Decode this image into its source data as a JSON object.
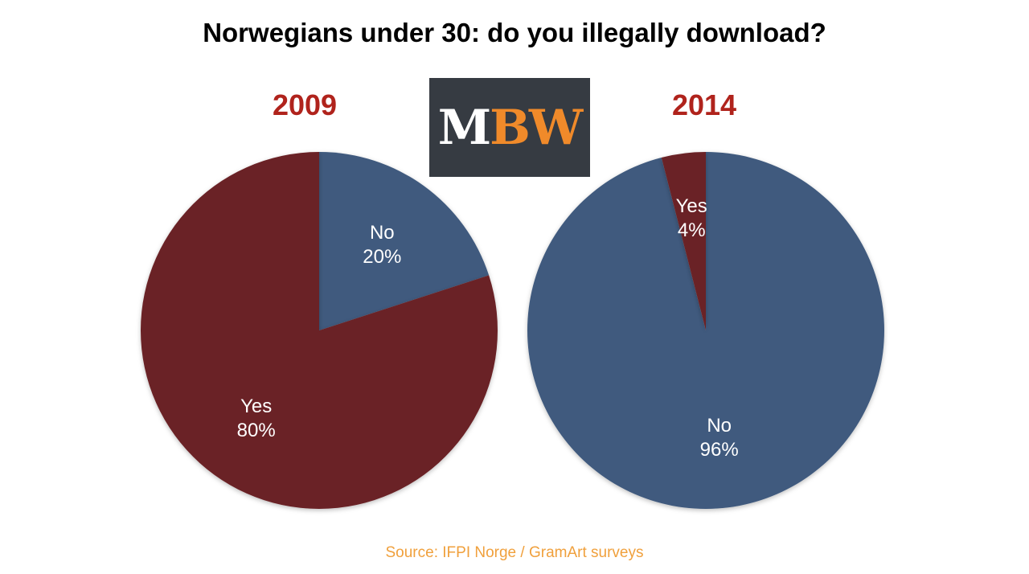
{
  "title": "Norwegians under 30: do you illegally download?",
  "source": "Source:  IFPI Norge / GramArt surveys",
  "logo": {
    "text_white": "M",
    "text_orange": "BW"
  },
  "colors": {
    "title": "#000000",
    "year": "#b0231c",
    "source": "#f0a03c",
    "yes": "#6b2326",
    "no": "#3f5a7e",
    "logo_bg": "#363b42",
    "logo_accent": "#f08a2a",
    "slice_label": "#ffffff"
  },
  "chart_data": [
    {
      "type": "pie",
      "title": "2009",
      "slices": [
        {
          "label": "No",
          "value": 20,
          "value_label": "20%",
          "color": "#3f5a7e"
        },
        {
          "label": "Yes",
          "value": 80,
          "value_label": "80%",
          "color": "#6b2326"
        }
      ]
    },
    {
      "type": "pie",
      "title": "2014",
      "slices": [
        {
          "label": "No",
          "value": 96,
          "value_label": "96%",
          "color": "#3f5a7e"
        },
        {
          "label": "Yes",
          "value": 4,
          "value_label": "4%",
          "color": "#6b2326"
        }
      ]
    }
  ]
}
